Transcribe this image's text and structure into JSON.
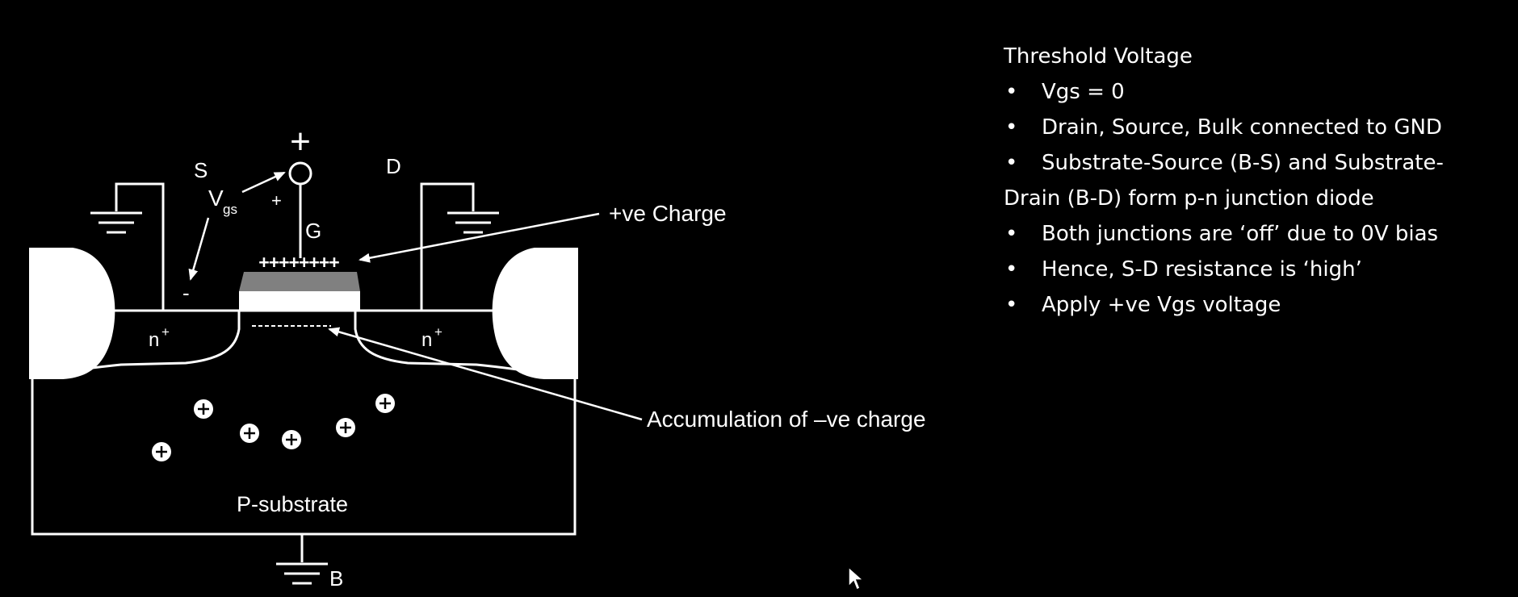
{
  "colors": {
    "background": "#000000",
    "foreground": "#ffffff",
    "gate_oxide": "#808080"
  },
  "diagram": {
    "terminals": {
      "source": "S",
      "drain": "D",
      "gate": "G",
      "bulk": "B",
      "gate_plus": "+",
      "vgs_plus": "+",
      "vgs_minus": "-",
      "vgs_main": "V",
      "vgs_sub": "gs"
    },
    "gate_charge": "++++++++",
    "n_regions": [
      "n",
      "n"
    ],
    "n_superscript": "+",
    "substrate_label": "P-substrate",
    "holes_count": 6,
    "annotations": {
      "positive_charge": "+ve Charge",
      "accumulation": "Accumulation of –ve charge"
    }
  },
  "notes": {
    "title": "Threshold Voltage",
    "bullet_symbol": "•",
    "bullets": [
      "Vgs = 0",
      "Drain, Source, Bulk connected to GND",
      "Substrate-Source (B-S) and Substrate-",
      "Both junctions are ‘off’ due to 0V bias",
      "Hence, S-D resistance is ‘high’",
      "Apply +ve Vgs voltage"
    ],
    "bullet3_continuation": "Drain (B-D) form p-n junction diode"
  },
  "cursor": "mouse-pointer-icon"
}
